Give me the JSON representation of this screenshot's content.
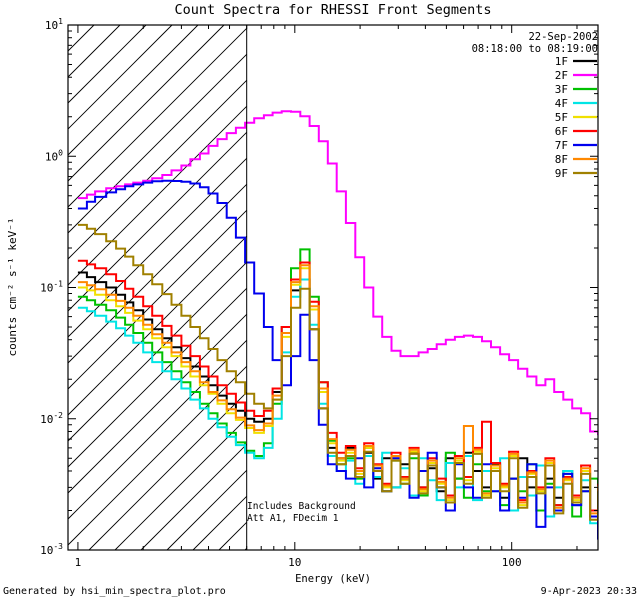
{
  "title": "Count Spectra for RHESSI Front Segments",
  "header": {
    "date": "22-Sep-2002",
    "time_range": "08:18:00 to 08:19:00"
  },
  "annotations": {
    "line1": "Includes Background",
    "line2": "Att A1, FDecim 1"
  },
  "footer": {
    "generated_by": "Generated by hsi_min_spectra_plot.pro",
    "timestamp": "9-Apr-2023 20:33"
  },
  "chart_data": {
    "type": "line",
    "title": "Count Spectra for RHESSI Front Segments",
    "xlabel": "Energy (keV)",
    "ylabel": "counts cm⁻² s⁻¹ keV⁻¹",
    "xscale": "log",
    "yscale": "log",
    "xlim": [
      0.9,
      250
    ],
    "ylim": [
      0.001,
      10
    ],
    "xtick_decades": [
      1,
      10,
      100
    ],
    "ytick_exponents": [
      -3,
      -2,
      -1,
      0,
      1
    ],
    "grid": false,
    "step_mode": true,
    "legend_position": "top-right-inside",
    "attenuator_line_kev": 6,
    "hatched_region_kev": [
      0.9,
      6
    ],
    "energy_bins_kev": [
      1.0,
      1.1,
      1.2,
      1.35,
      1.5,
      1.65,
      1.8,
      2.0,
      2.2,
      2.45,
      2.7,
      3.0,
      3.3,
      3.65,
      4.0,
      4.4,
      4.85,
      5.35,
      5.9,
      6.5,
      7.2,
      7.9,
      8.7,
      9.6,
      10.6,
      11.7,
      12.9,
      14.2,
      15.6,
      17.2,
      19.0,
      20.9,
      23.0,
      25.3,
      27.9,
      30.7,
      33.8,
      37.2,
      41.0,
      45.1,
      49.7,
      54.7,
      60.2,
      66.3,
      73.0,
      80.3,
      88.4,
      97.3,
      107,
      118,
      130,
      143,
      157,
      173,
      190,
      209,
      230,
      250
    ],
    "series": [
      {
        "name": "1F",
        "color": "#000000",
        "values": [
          0.13,
          0.12,
          0.11,
          0.1,
          0.088,
          0.077,
          0.067,
          0.057,
          0.048,
          0.041,
          0.035,
          0.029,
          0.025,
          0.021,
          0.018,
          0.015,
          0.013,
          0.0115,
          0.01,
          0.0095,
          0.01,
          0.016,
          0.045,
          0.095,
          0.115,
          0.048,
          0.012,
          0.006,
          0.005,
          0.006,
          0.004,
          0.0055,
          0.0035,
          0.005,
          0.003,
          0.0045,
          0.0055,
          0.003,
          0.0042,
          0.0028,
          0.005,
          0.0035,
          0.0055,
          0.004,
          0.003,
          0.0045,
          0.0025,
          0.0035,
          0.005,
          0.003,
          0.002,
          0.0035,
          0.0025,
          0.004,
          0.0022,
          0.003,
          0.0018,
          0.0025
        ]
      },
      {
        "name": "2F",
        "color": "#ff00ff",
        "values": [
          0.48,
          0.51,
          0.54,
          0.57,
          0.59,
          0.61,
          0.63,
          0.65,
          0.68,
          0.72,
          0.78,
          0.85,
          0.95,
          1.05,
          1.2,
          1.35,
          1.5,
          1.65,
          1.8,
          1.95,
          2.05,
          2.15,
          2.2,
          2.18,
          2.02,
          1.7,
          1.3,
          0.88,
          0.54,
          0.31,
          0.17,
          0.1,
          0.06,
          0.042,
          0.033,
          0.03,
          0.03,
          0.032,
          0.034,
          0.037,
          0.04,
          0.042,
          0.043,
          0.042,
          0.039,
          0.035,
          0.031,
          0.028,
          0.024,
          0.021,
          0.018,
          0.02,
          0.016,
          0.014,
          0.012,
          0.011,
          0.008,
          0.0075
        ]
      },
      {
        "name": "3F",
        "color": "#00c000",
        "values": [
          0.085,
          0.08,
          0.074,
          0.067,
          0.059,
          0.052,
          0.045,
          0.038,
          0.032,
          0.027,
          0.023,
          0.019,
          0.016,
          0.013,
          0.011,
          0.0092,
          0.0078,
          0.0066,
          0.0057,
          0.0052,
          0.0065,
          0.013,
          0.05,
          0.14,
          0.195,
          0.085,
          0.019,
          0.0068,
          0.0045,
          0.005,
          0.0035,
          0.006,
          0.004,
          0.0028,
          0.0048,
          0.0032,
          0.005,
          0.0026,
          0.0044,
          0.003,
          0.0055,
          0.0035,
          0.0025,
          0.0045,
          0.0028,
          0.004,
          0.0022,
          0.0035,
          0.0028,
          0.0045,
          0.002,
          0.0032,
          0.0022,
          0.0038,
          0.0018,
          0.0028,
          0.0035,
          0.002
        ]
      },
      {
        "name": "4F",
        "color": "#00e5e5",
        "values": [
          0.07,
          0.066,
          0.061,
          0.055,
          0.049,
          0.043,
          0.038,
          0.032,
          0.027,
          0.023,
          0.02,
          0.017,
          0.014,
          0.012,
          0.01,
          0.0086,
          0.0073,
          0.0063,
          0.0055,
          0.005,
          0.006,
          0.01,
          0.032,
          0.085,
          0.115,
          0.052,
          0.013,
          0.0052,
          0.004,
          0.0048,
          0.0032,
          0.0052,
          0.0036,
          0.0055,
          0.003,
          0.0042,
          0.0026,
          0.005,
          0.0034,
          0.0024,
          0.0046,
          0.003,
          0.0052,
          0.0024,
          0.004,
          0.0028,
          0.005,
          0.002,
          0.0036,
          0.0026,
          0.0044,
          0.0018,
          0.003,
          0.004,
          0.0022,
          0.0034,
          0.0016,
          0.0026
        ]
      },
      {
        "name": "5F",
        "color": "#f0e000",
        "values": [
          0.1,
          0.095,
          0.088,
          0.08,
          0.072,
          0.064,
          0.056,
          0.048,
          0.041,
          0.035,
          0.03,
          0.025,
          0.021,
          0.018,
          0.0155,
          0.013,
          0.011,
          0.0098,
          0.0085,
          0.0078,
          0.0088,
          0.014,
          0.042,
          0.105,
          0.14,
          0.068,
          0.016,
          0.0065,
          0.0048,
          0.0055,
          0.0038,
          0.006,
          0.0042,
          0.003,
          0.005,
          0.0034,
          0.0056,
          0.0028,
          0.0046,
          0.0032,
          0.0024,
          0.0048,
          0.0034,
          0.0056,
          0.0026,
          0.0042,
          0.003,
          0.0052,
          0.0022,
          0.0038,
          0.0028,
          0.0046,
          0.002,
          0.0034,
          0.0024,
          0.004,
          0.0018,
          0.003
        ]
      },
      {
        "name": "6F",
        "color": "#ff0000",
        "values": [
          0.16,
          0.15,
          0.14,
          0.126,
          0.112,
          0.098,
          0.085,
          0.072,
          0.061,
          0.051,
          0.043,
          0.036,
          0.03,
          0.025,
          0.021,
          0.018,
          0.0155,
          0.0133,
          0.0115,
          0.0105,
          0.0115,
          0.017,
          0.05,
          0.115,
          0.155,
          0.078,
          0.019,
          0.0078,
          0.0055,
          0.0062,
          0.0042,
          0.0065,
          0.0045,
          0.0032,
          0.0055,
          0.0036,
          0.006,
          0.003,
          0.005,
          0.0035,
          0.0026,
          0.0052,
          0.0036,
          0.006,
          0.0095,
          0.0046,
          0.0032,
          0.0056,
          0.0024,
          0.004,
          0.003,
          0.005,
          0.0022,
          0.0036,
          0.0026,
          0.0044,
          0.002,
          0.0032
        ]
      },
      {
        "name": "7F",
        "color": "#0000ee",
        "values": [
          0.4,
          0.45,
          0.49,
          0.53,
          0.56,
          0.59,
          0.61,
          0.63,
          0.645,
          0.65,
          0.648,
          0.64,
          0.62,
          0.58,
          0.52,
          0.44,
          0.34,
          0.24,
          0.155,
          0.09,
          0.05,
          0.028,
          0.018,
          0.03,
          0.062,
          0.028,
          0.009,
          0.0045,
          0.004,
          0.0035,
          0.005,
          0.003,
          0.0042,
          0.0028,
          0.005,
          0.0035,
          0.0025,
          0.004,
          0.0055,
          0.003,
          0.002,
          0.0045,
          0.003,
          0.0025,
          0.0045,
          0.0028,
          0.002,
          0.0035,
          0.0025,
          0.0045,
          0.0015,
          0.003,
          0.002,
          0.0038,
          0.0022,
          0.0028,
          0.0018,
          0.0012
        ]
      },
      {
        "name": "8F",
        "color": "#ff8800",
        "values": [
          0.11,
          0.104,
          0.097,
          0.088,
          0.079,
          0.07,
          0.061,
          0.052,
          0.044,
          0.038,
          0.032,
          0.027,
          0.023,
          0.019,
          0.016,
          0.0138,
          0.0118,
          0.0102,
          0.0089,
          0.0082,
          0.0092,
          0.015,
          0.045,
          0.11,
          0.148,
          0.072,
          0.017,
          0.007,
          0.005,
          0.0058,
          0.004,
          0.0062,
          0.0044,
          0.0031,
          0.0052,
          0.0035,
          0.0058,
          0.0029,
          0.0048,
          0.0033,
          0.0025,
          0.005,
          0.0088,
          0.0058,
          0.0027,
          0.0044,
          0.0031,
          0.0054,
          0.0023,
          0.0039,
          0.0029,
          0.0048,
          0.0021,
          0.0035,
          0.0025,
          0.0042,
          0.0019,
          0.0031
        ]
      },
      {
        "name": "9F",
        "color": "#a08000",
        "values": [
          0.3,
          0.28,
          0.255,
          0.225,
          0.198,
          0.172,
          0.148,
          0.126,
          0.106,
          0.089,
          0.074,
          0.061,
          0.05,
          0.041,
          0.034,
          0.028,
          0.023,
          0.019,
          0.0155,
          0.013,
          0.012,
          0.014,
          0.03,
          0.07,
          0.098,
          0.048,
          0.012,
          0.0055,
          0.0045,
          0.0052,
          0.0036,
          0.0056,
          0.004,
          0.0028,
          0.0048,
          0.0032,
          0.0054,
          0.0027,
          0.0044,
          0.003,
          0.0023,
          0.0046,
          0.0032,
          0.0054,
          0.0025,
          0.004,
          0.0028,
          0.005,
          0.0021,
          0.0036,
          0.0027,
          0.0044,
          0.0019,
          0.0032,
          0.0023,
          0.0038,
          0.0017,
          0.0028
        ]
      }
    ]
  }
}
